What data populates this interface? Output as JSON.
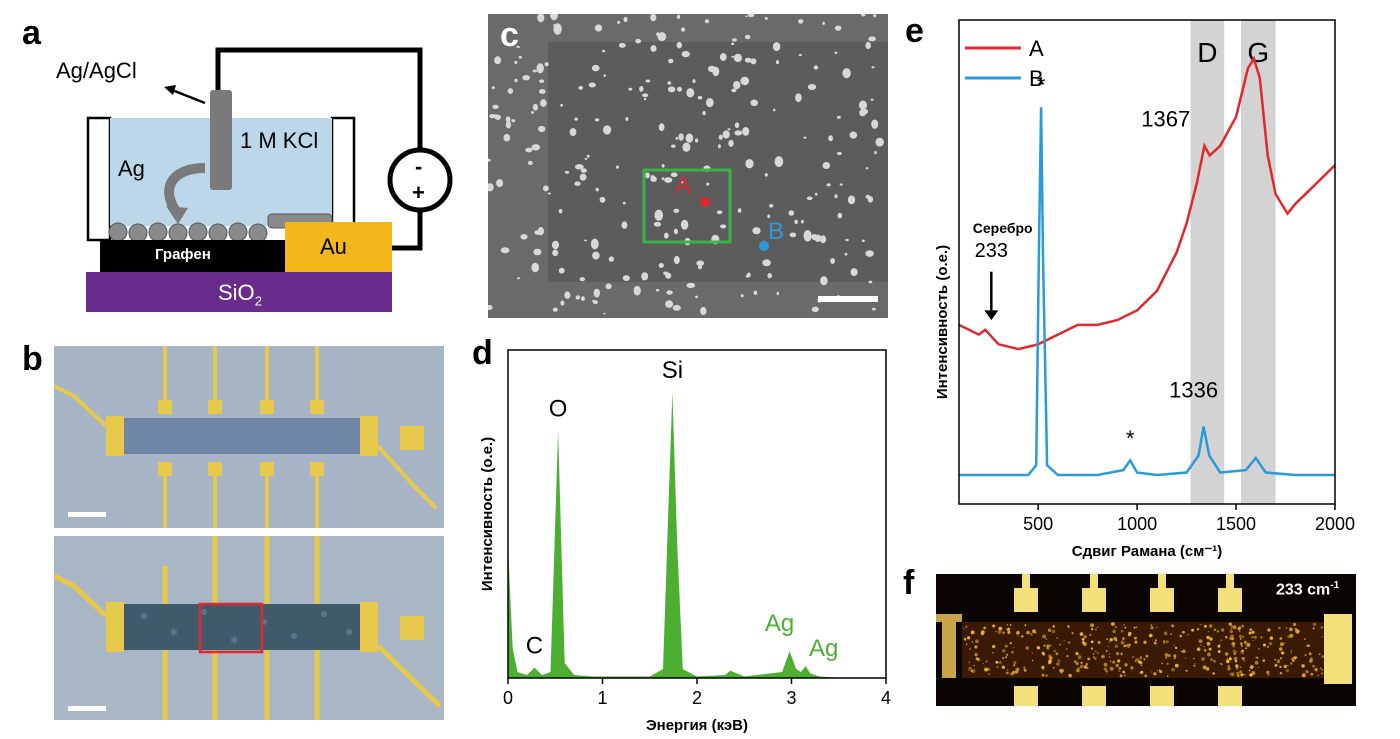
{
  "panels": {
    "a": {
      "label": "a",
      "electrode_label": "Ag/AgCl",
      "electrolyte_label": "1 M KCl",
      "metal_label": "Ag",
      "graphene_label": "Графен",
      "contact_label": "Au",
      "substrate_label": "SiO",
      "substrate_sub": "2",
      "source_minus": "-",
      "source_plus": "+"
    },
    "b": {
      "label": "b"
    },
    "c": {
      "label": "c",
      "point_a": "A",
      "point_b": "B"
    },
    "d": {
      "label": "d"
    },
    "e": {
      "label": "e"
    },
    "f": {
      "label": "f",
      "map_label": "233 cm",
      "map_label_sup": "-1"
    }
  },
  "chart_data": [
    {
      "panel": "d",
      "type": "line",
      "xlabel": "Энергия (кэВ)",
      "ylabel": "Интенсивность (о.е.)",
      "xlim": [
        0,
        4
      ],
      "ylim": [
        0,
        1
      ],
      "x_ticks": [
        0,
        1,
        2,
        3,
        4
      ],
      "series_color": "#4daf32",
      "peaks": [
        {
          "label": "C",
          "x": 0.28,
          "y": 0.035
        },
        {
          "label": "O",
          "x": 0.53,
          "y": 0.83
        },
        {
          "label": "Si",
          "x": 1.74,
          "y": 0.96
        },
        {
          "label": "Ag",
          "x": 2.98,
          "y": 0.09
        },
        {
          "label": "Ag",
          "x": 3.15,
          "y": 0.04
        }
      ],
      "x": [
        0,
        0.02,
        0.05,
        0.1,
        0.2,
        0.28,
        0.36,
        0.45,
        0.53,
        0.6,
        0.7,
        0.9,
        1.2,
        1.5,
        1.64,
        1.7,
        1.74,
        1.79,
        1.85,
        2.0,
        2.3,
        2.35,
        2.5,
        2.9,
        2.98,
        3.05,
        3.1,
        3.15,
        3.2,
        3.3,
        3.6,
        4.0
      ],
      "y": [
        0.45,
        0.3,
        0.1,
        0.02,
        0.01,
        0.035,
        0.01,
        0.02,
        0.83,
        0.05,
        0.01,
        0.005,
        0.005,
        0.005,
        0.03,
        0.6,
        0.96,
        0.45,
        0.03,
        0.005,
        0.01,
        0.025,
        0.005,
        0.02,
        0.09,
        0.03,
        0.02,
        0.04,
        0.015,
        0.005,
        0.0,
        0.0
      ]
    },
    {
      "panel": "e",
      "type": "line",
      "xlabel": "Сдвиг Рамана (см⁻¹)",
      "ylabel": "Интенсивность (о.е.)",
      "xlim": [
        100,
        2000
      ],
      "ylim": [
        0,
        1
      ],
      "x_ticks": [
        500,
        1000,
        1500,
        2000
      ],
      "bands": [
        {
          "label": "D",
          "from": 1270,
          "to": 1440
        },
        {
          "label": "G",
          "from": 1525,
          "to": 1700
        }
      ],
      "annotations": [
        {
          "text": "1367",
          "x": 1367
        },
        {
          "text": "1336",
          "x": 1336
        },
        {
          "text": "*",
          "x": 515
        },
        {
          "text": "*",
          "x": 965
        },
        {
          "text": "Серебро",
          "x": 250
        },
        {
          "text": "233",
          "x": 233
        }
      ],
      "legend_position": "top-left",
      "series": [
        {
          "name": "A",
          "color": "#e0282d",
          "x": [
            100,
            200,
            233,
            300,
            400,
            500,
            600,
            700,
            800,
            900,
            1000,
            1100,
            1200,
            1250,
            1300,
            1340,
            1367,
            1420,
            1500,
            1560,
            1590,
            1620,
            1660,
            1700,
            1760,
            1800,
            1850,
            1900,
            1950,
            2000
          ],
          "y": [
            0.37,
            0.35,
            0.36,
            0.33,
            0.32,
            0.33,
            0.35,
            0.37,
            0.37,
            0.38,
            0.4,
            0.44,
            0.52,
            0.58,
            0.66,
            0.74,
            0.72,
            0.74,
            0.8,
            0.9,
            0.92,
            0.88,
            0.72,
            0.64,
            0.6,
            0.62,
            0.64,
            0.66,
            0.68,
            0.7
          ]
        },
        {
          "name": "B",
          "color": "#2a9ad8",
          "x": [
            100,
            300,
            450,
            490,
            505,
            515,
            525,
            545,
            600,
            800,
            930,
            965,
            1000,
            1100,
            1250,
            1310,
            1336,
            1365,
            1420,
            1550,
            1600,
            1650,
            1800,
            2000
          ],
          "y": [
            0.06,
            0.06,
            0.06,
            0.08,
            0.55,
            0.82,
            0.5,
            0.08,
            0.06,
            0.06,
            0.07,
            0.09,
            0.065,
            0.06,
            0.065,
            0.1,
            0.16,
            0.1,
            0.065,
            0.07,
            0.095,
            0.065,
            0.06,
            0.06
          ]
        }
      ]
    }
  ]
}
